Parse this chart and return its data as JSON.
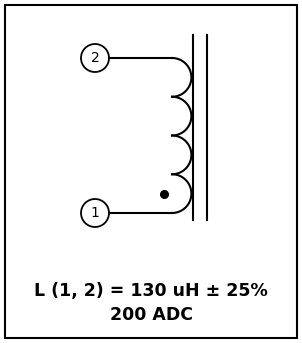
{
  "text_line1": "L (1, 2) = 130 uH ± 25%",
  "text_line2": "200 ADC",
  "bg_color": "#ffffff",
  "line_color": "#000000",
  "figsize": [
    3.02,
    3.43
  ],
  "dpi": 100,
  "font_size_labels": 10,
  "font_size_text": 12.5
}
